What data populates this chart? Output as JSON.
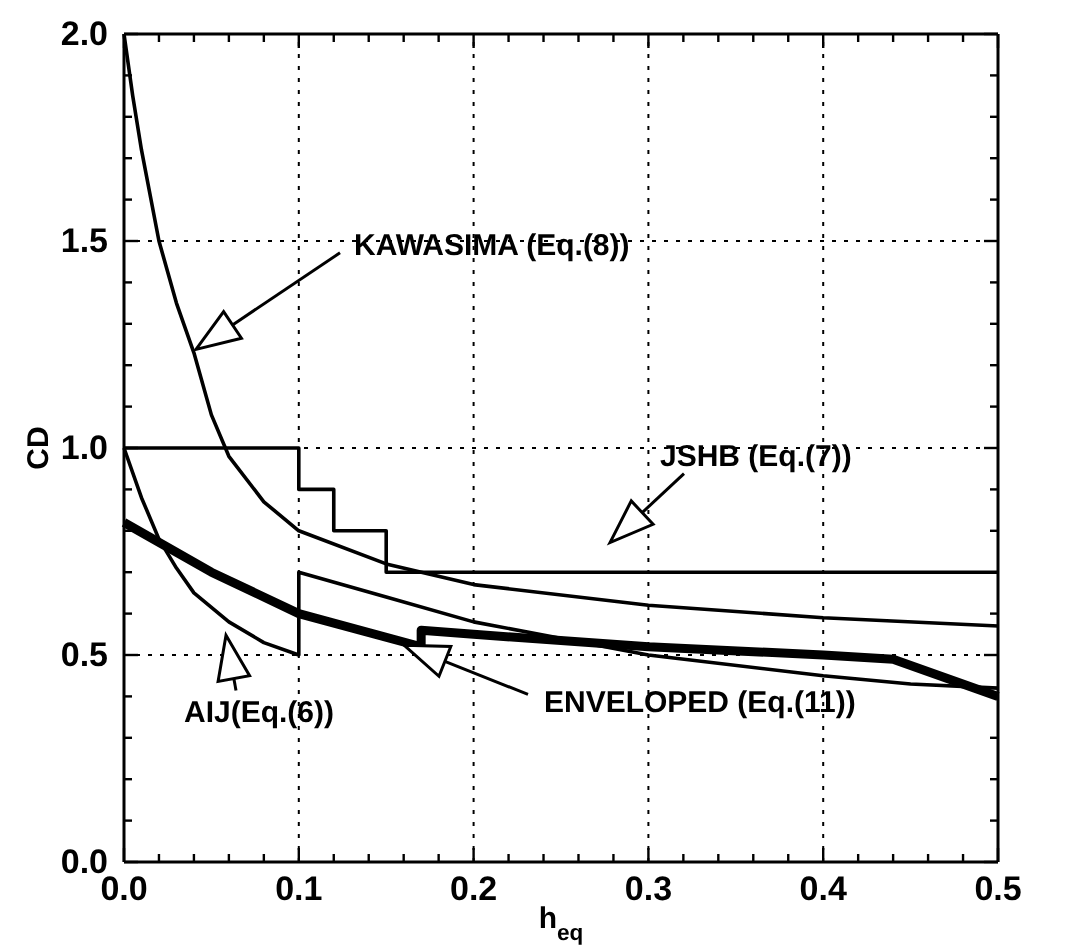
{
  "chart_data": {
    "type": "line",
    "xlabel": "h$_{eq}$",
    "ylabel": "CD",
    "xlim": [
      0,
      0.5
    ],
    "ylim": [
      0,
      2.0
    ],
    "xticks": [
      {
        "value": 0,
        "label": "0.0"
      },
      {
        "value": 0.02,
        "label": null
      },
      {
        "value": 0.04,
        "label": null
      },
      {
        "value": 0.06,
        "label": null
      },
      {
        "value": 0.08,
        "label": null
      },
      {
        "value": 0.1,
        "label": "0.1"
      },
      {
        "value": 0.12,
        "label": null
      },
      {
        "value": 0.14,
        "label": null
      },
      {
        "value": 0.16,
        "label": null
      },
      {
        "value": 0.18,
        "label": null
      },
      {
        "value": 0.2,
        "label": "0.2"
      },
      {
        "value": 0.22,
        "label": null
      },
      {
        "value": 0.24,
        "label": null
      },
      {
        "value": 0.26,
        "label": null
      },
      {
        "value": 0.28,
        "label": null
      },
      {
        "value": 0.3,
        "label": "0.3"
      },
      {
        "value": 0.32,
        "label": null
      },
      {
        "value": 0.34,
        "label": null
      },
      {
        "value": 0.36,
        "label": null
      },
      {
        "value": 0.38,
        "label": null
      },
      {
        "value": 0.4,
        "label": "0.4"
      },
      {
        "value": 0.42,
        "label": null
      },
      {
        "value": 0.44,
        "label": null
      },
      {
        "value": 0.46,
        "label": null
      },
      {
        "value": 0.48,
        "label": null
      },
      {
        "value": 0.5,
        "label": "0.5"
      }
    ],
    "yticks": [
      {
        "value": 0,
        "label": "0.0"
      },
      {
        "value": 0.1,
        "label": null
      },
      {
        "value": 0.2,
        "label": null
      },
      {
        "value": 0.3,
        "label": null
      },
      {
        "value": 0.4,
        "label": null
      },
      {
        "value": 0.5,
        "label": "0.5"
      },
      {
        "value": 0.6,
        "label": null
      },
      {
        "value": 0.7,
        "label": null
      },
      {
        "value": 0.8,
        "label": null
      },
      {
        "value": 0.9,
        "label": null
      },
      {
        "value": 1.0,
        "label": "1.0"
      },
      {
        "value": 1.1,
        "label": null
      },
      {
        "value": 1.2,
        "label": null
      },
      {
        "value": 1.3,
        "label": null
      },
      {
        "value": 1.4,
        "label": null
      },
      {
        "value": 1.5,
        "label": "1.5"
      },
      {
        "value": 1.6,
        "label": null
      },
      {
        "value": 1.7,
        "label": null
      },
      {
        "value": 1.8,
        "label": null
      },
      {
        "value": 1.9,
        "label": null
      },
      {
        "value": 2.0,
        "label": "2.0"
      }
    ],
    "grid": true,
    "marker": "none",
    "line_style": "solid",
    "series": [
      {
        "color": "#000000",
        "x": [
          0,
          0.005,
          0.01,
          0.02,
          0.03,
          0.04,
          0.05,
          0.06,
          0.08,
          0.1,
          0.15,
          0.2,
          0.3,
          0.4,
          0.5
        ],
        "values": [
          2.0,
          1.85,
          1.72,
          1.5,
          1.35,
          1.23,
          1.08,
          0.98,
          0.87,
          0.8,
          0.72,
          0.67,
          0.62,
          0.59,
          0.57
        ]
      },
      {
        "type": "step",
        "color": "#000000",
        "x": [
          0,
          0.1,
          0.12,
          0.15,
          0.5
        ],
        "values": [
          1.0,
          0.9,
          0.8,
          0.7,
          0.7
        ]
      },
      {
        "color": "#000000",
        "x": [
          0,
          0.01,
          0.02,
          0.03,
          0.04,
          0.06,
          0.08,
          0.1,
          0.1,
          0.15,
          0.2,
          0.3,
          0.4,
          0.45,
          0.5
        ],
        "values": [
          1.0,
          0.88,
          0.78,
          0.71,
          0.65,
          0.58,
          0.53,
          0.5,
          0.7,
          0.64,
          0.58,
          0.5,
          0.45,
          0.43,
          0.42
        ]
      },
      {
        "color": "#000000",
        "x": [
          0,
          0.05,
          0.1,
          0.17,
          0.17,
          0.2,
          0.3,
          0.4,
          0.44,
          0.5
        ],
        "values": [
          0.82,
          0.7,
          0.6,
          0.52,
          0.56,
          0.55,
          0.52,
          0.5,
          0.49,
          0.4
        ]
      }
    ],
    "annotations": [
      "KAWASIMA (Eq.(8))",
      "JSHB (Eq.(7))",
      "AIJ(Eq.(6))",
      "ENVELOPED (Eq.(11))"
    ]
  }
}
